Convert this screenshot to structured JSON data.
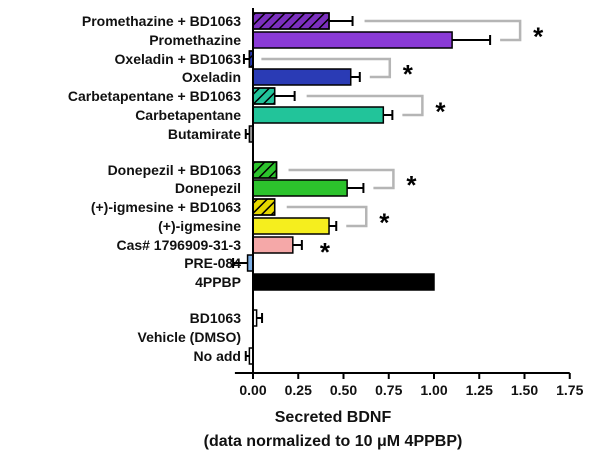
{
  "chart_data": {
    "type": "bar",
    "orientation": "horizontal",
    "xlabel": "Secreted BDNF",
    "xlabel_sub": "(data normalized to 10 μM 4PPBP)",
    "xlim": [
      -0.1,
      1.75
    ],
    "xticks": [
      "0.00",
      "0.25",
      "0.50",
      "0.75",
      "1.00",
      "1.25",
      "1.50",
      "1.75"
    ],
    "grid": false,
    "significance_marker": "*",
    "bars": [
      {
        "label": "Promethazine + BD1063",
        "value": 0.42,
        "error": 0.13,
        "color": "#7b2fbe",
        "hatched": true
      },
      {
        "label": "Promethazine",
        "value": 1.1,
        "error": 0.21,
        "color": "#8a3ad6",
        "hatched": false
      },
      {
        "label": "Oxeladin + BD1063",
        "value": -0.02,
        "error": 0.03,
        "color": "#2a3bb5",
        "hatched": true
      },
      {
        "label": "Oxeladin",
        "value": 0.54,
        "error": 0.05,
        "color": "#2a3bb5",
        "hatched": false
      },
      {
        "label": "Carbetapentane + BD1063",
        "value": 0.12,
        "error": 0.11,
        "color": "#22c49a",
        "hatched": true
      },
      {
        "label": "Carbetapentane",
        "value": 0.72,
        "error": 0.05,
        "color": "#22c49a",
        "hatched": false
      },
      {
        "label": "Butamirate",
        "value": -0.02,
        "error": 0.02,
        "color": "#999999",
        "hatched": false
      },
      {
        "label": "Donepezil + BD1063",
        "value": 0.13,
        "error": 0.0,
        "color": "#2cc32c",
        "hatched": true
      },
      {
        "label": "Donepezil",
        "value": 0.52,
        "error": 0.09,
        "color": "#2cc32c",
        "hatched": false
      },
      {
        "label": "(+)-igmesine + BD1063",
        "value": 0.12,
        "error": 0.0,
        "color": "#e6d800",
        "hatched": true
      },
      {
        "label": "(+)-igmesine",
        "value": 0.42,
        "error": 0.04,
        "color": "#f5ee1e",
        "hatched": false
      },
      {
        "label": "Cas# 1796909-31-3",
        "value": 0.22,
        "error": 0.05,
        "color": "#f5a8a8",
        "hatched": false
      },
      {
        "label": "PRE-084",
        "value": -0.03,
        "error": 0.08,
        "color": "#7fb0e6",
        "hatched": false
      },
      {
        "label": "4PPBP",
        "value": 1.0,
        "error": 0.0,
        "color": "#000000",
        "hatched": false
      },
      {
        "label": "BD1063",
        "value": 0.02,
        "error": 0.03,
        "color": "#ffffff",
        "hatched": false
      },
      {
        "label": "Vehicle (DMSO)",
        "value": 0.0,
        "error": 0.0,
        "color": "#ffffff",
        "hatched": false
      },
      {
        "label": "No add",
        "value": -0.02,
        "error": 0.02,
        "color": "#ffffff",
        "hatched": false
      }
    ],
    "comparisons": [
      {
        "from": "Promethazine + BD1063",
        "to": "Promethazine",
        "label": "*"
      },
      {
        "from": "Oxeladin + BD1063",
        "to": "Oxeladin",
        "label": "*"
      },
      {
        "from": "Carbetapentane + BD1063",
        "to": "Carbetapentane",
        "label": "*"
      },
      {
        "from": "Donepezil + BD1063",
        "to": "Donepezil",
        "label": "*"
      },
      {
        "from": "(+)-igmesine + BD1063",
        "to": "(+)-igmesine",
        "label": "*"
      },
      {
        "single": "Cas# 1796909-31-3",
        "label": "*"
      }
    ]
  }
}
